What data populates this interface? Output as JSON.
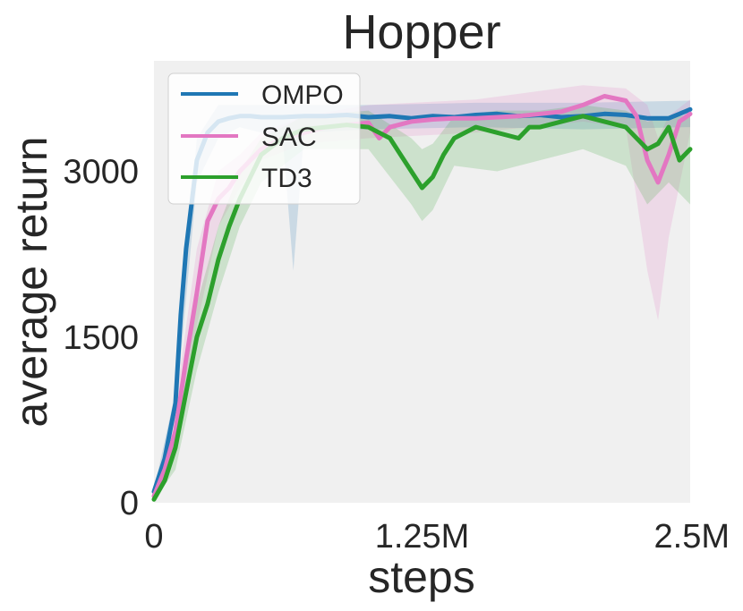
{
  "chart_data": {
    "type": "line",
    "title": "Hopper",
    "xlabel": "steps",
    "ylabel": "average return",
    "xlim": [
      0,
      2500000
    ],
    "ylim": [
      0,
      4000
    ],
    "xticks": [
      0,
      1250000,
      2500000
    ],
    "xtick_labels": [
      "0",
      "1.25M",
      "2.5M"
    ],
    "yticks": [
      0,
      1500,
      3000
    ],
    "ytick_labels": [
      "0",
      "1500",
      "3000"
    ],
    "grid": false,
    "background": "#f0f0f0",
    "legend_position": "top-left",
    "series": [
      {
        "name": "OMPO",
        "color": "#1f77b4",
        "x": [
          0,
          50000,
          100000,
          125000,
          150000,
          175000,
          200000,
          250000,
          300000,
          350000,
          400000,
          450000,
          500000,
          600000,
          700000,
          800000,
          900000,
          1000000,
          1100000,
          1200000,
          1300000,
          1400000,
          1500000,
          1600000,
          1700000,
          1800000,
          1900000,
          2000000,
          2100000,
          2200000,
          2300000,
          2400000,
          2450000,
          2500000
        ],
        "values": [
          100,
          400,
          900,
          1700,
          2300,
          2700,
          3100,
          3350,
          3450,
          3480,
          3500,
          3500,
          3490,
          3490,
          3500,
          3500,
          3510,
          3490,
          3500,
          3480,
          3500,
          3490,
          3510,
          3520,
          3500,
          3510,
          3490,
          3500,
          3520,
          3510,
          3480,
          3480,
          3520,
          3560
        ],
        "band": [
          [
            0,
            80,
            120
          ],
          [
            100000,
            800,
            1000
          ],
          [
            200000,
            2900,
            3300
          ],
          [
            300000,
            3300,
            3600
          ],
          [
            400000,
            3400,
            3600
          ],
          [
            500000,
            3350,
            3600
          ],
          [
            600000,
            3300,
            3600
          ],
          [
            650000,
            2100,
            3600
          ],
          [
            700000,
            3350,
            3600
          ],
          [
            1000000,
            3380,
            3600
          ],
          [
            1500000,
            3400,
            3620
          ],
          [
            2000000,
            3380,
            3620
          ],
          [
            2500000,
            3400,
            3640
          ]
        ]
      },
      {
        "name": "SAC",
        "color": "#e377c2",
        "x": [
          0,
          50000,
          100000,
          150000,
          200000,
          250000,
          300000,
          350000,
          400000,
          450000,
          500000,
          600000,
          700000,
          800000,
          900000,
          1000000,
          1050000,
          1100000,
          1200000,
          1300000,
          1400000,
          1500000,
          1600000,
          1700000,
          1800000,
          1900000,
          2000000,
          2100000,
          2200000,
          2250000,
          2300000,
          2350000,
          2400000,
          2450000,
          2500000
        ],
        "values": [
          60,
          300,
          650,
          1300,
          1900,
          2550,
          2750,
          2850,
          3000,
          3100,
          3200,
          3300,
          3350,
          3400,
          3420,
          3440,
          3300,
          3400,
          3450,
          3470,
          3480,
          3480,
          3490,
          3500,
          3520,
          3540,
          3600,
          3680,
          3640,
          3500,
          3100,
          2900,
          3150,
          3450,
          3520
        ],
        "band": [
          [
            0,
            40,
            80
          ],
          [
            100000,
            500,
            900
          ],
          [
            200000,
            1600,
            2300
          ],
          [
            300000,
            2500,
            3000
          ],
          [
            400000,
            2850,
            3150
          ],
          [
            500000,
            3100,
            3350
          ],
          [
            700000,
            3250,
            3500
          ],
          [
            1000000,
            3300,
            3600
          ],
          [
            1500000,
            3350,
            3650
          ],
          [
            2000000,
            3450,
            3780
          ],
          [
            2200000,
            3400,
            3750
          ],
          [
            2300000,
            2100,
            3600
          ],
          [
            2350000,
            1650,
            3300
          ],
          [
            2400000,
            2400,
            3500
          ],
          [
            2500000,
            3350,
            3650
          ]
        ]
      },
      {
        "name": "TD3",
        "color": "#2ca02c",
        "x": [
          0,
          50000,
          100000,
          150000,
          200000,
          250000,
          300000,
          350000,
          400000,
          450000,
          500000,
          600000,
          700000,
          800000,
          900000,
          1000000,
          1050000,
          1100000,
          1150000,
          1200000,
          1250000,
          1300000,
          1350000,
          1400000,
          1500000,
          1600000,
          1700000,
          1750000,
          1800000,
          1900000,
          2000000,
          2100000,
          2200000,
          2300000,
          2350000,
          2400000,
          2450000,
          2500000
        ],
        "values": [
          30,
          200,
          500,
          1000,
          1500,
          1800,
          2200,
          2500,
          2750,
          2950,
          3150,
          3300,
          3380,
          3400,
          3420,
          3400,
          3350,
          3300,
          3150,
          3000,
          2850,
          2950,
          3150,
          3300,
          3400,
          3350,
          3300,
          3400,
          3400,
          3450,
          3500,
          3450,
          3400,
          3200,
          3250,
          3400,
          3100,
          3200
        ],
        "band": [
          [
            0,
            20,
            60
          ],
          [
            100000,
            300,
            700
          ],
          [
            200000,
            1200,
            1800
          ],
          [
            300000,
            1900,
            2500
          ],
          [
            400000,
            2500,
            3000
          ],
          [
            500000,
            2900,
            3300
          ],
          [
            700000,
            3200,
            3500
          ],
          [
            1000000,
            3200,
            3550
          ],
          [
            1200000,
            2700,
            3300
          ],
          [
            1250000,
            2550,
            3200
          ],
          [
            1300000,
            2650,
            3250
          ],
          [
            1400000,
            3050,
            3500
          ],
          [
            1600000,
            3000,
            3550
          ],
          [
            1800000,
            3100,
            3550
          ],
          [
            2000000,
            3200,
            3600
          ],
          [
            2200000,
            3050,
            3550
          ],
          [
            2300000,
            2700,
            3450
          ],
          [
            2400000,
            2900,
            3500
          ],
          [
            2500000,
            2700,
            3500
          ]
        ]
      }
    ]
  }
}
